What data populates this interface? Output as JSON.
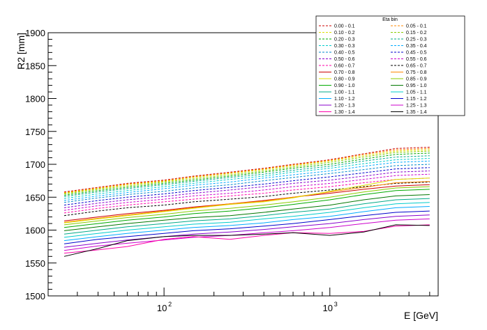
{
  "chart_data": {
    "type": "line",
    "title": "",
    "xlabel": "E [GeV]",
    "ylabel": "R2 [mm]",
    "x_scale": "log",
    "xlim": [
      20,
      4500
    ],
    "ylim": [
      1500,
      1900
    ],
    "y_ticks": [
      "1500",
      "1550",
      "1600",
      "1650",
      "1700",
      "1750",
      "1800",
      "1850",
      "1900"
    ],
    "x_tick_labels": [
      {
        "base": "10",
        "exp": "2",
        "value": 100
      },
      {
        "base": "10",
        "exp": "3",
        "value": 1000
      }
    ],
    "grid": false,
    "legend": {
      "title": "Eta bin",
      "placement": "top-right",
      "columns": 2
    },
    "x": [
      25,
      40,
      60,
      100,
      150,
      250,
      400,
      600,
      1000,
      1600,
      2500,
      4000
    ],
    "series": [
      {
        "name": "0.00 - 0.1",
        "color": "#cc0000",
        "dash": "dashed",
        "values": [
          1658,
          1665,
          1671,
          1676,
          1682,
          1688,
          1694,
          1700,
          1707,
          1716,
          1724,
          1726
        ]
      },
      {
        "name": "0.05 - 0.1",
        "color": "#ff8800",
        "dash": "dashed",
        "values": [
          1657,
          1664,
          1670,
          1675,
          1681,
          1687,
          1693,
          1699,
          1706,
          1715,
          1722,
          1724
        ]
      },
      {
        "name": "0.10 - 0.2",
        "color": "#dddd00",
        "dash": "dashed",
        "values": [
          1656,
          1663,
          1669,
          1674,
          1680,
          1686,
          1692,
          1698,
          1705,
          1713,
          1720,
          1722
        ]
      },
      {
        "name": "0.15 - 0.2",
        "color": "#88cc00",
        "dash": "dashed",
        "values": [
          1655,
          1662,
          1667,
          1673,
          1678,
          1684,
          1690,
          1696,
          1703,
          1711,
          1718,
          1720
        ]
      },
      {
        "name": "0.20 - 0.3",
        "color": "#00aa00",
        "dash": "dashed",
        "values": [
          1653,
          1660,
          1665,
          1671,
          1676,
          1682,
          1688,
          1694,
          1700,
          1708,
          1715,
          1717
        ]
      },
      {
        "name": "0.25 - 0.3",
        "color": "#00aa88",
        "dash": "dashed",
        "values": [
          1651,
          1658,
          1663,
          1669,
          1674,
          1680,
          1685,
          1691,
          1697,
          1705,
          1711,
          1713
        ]
      },
      {
        "name": "0.30 - 0.3",
        "color": "#00cccc",
        "dash": "dashed",
        "values": [
          1648,
          1655,
          1660,
          1666,
          1671,
          1677,
          1682,
          1688,
          1694,
          1701,
          1707,
          1709
        ]
      },
      {
        "name": "0.35 - 0.4",
        "color": "#00aaff",
        "dash": "dashed",
        "values": [
          1645,
          1652,
          1657,
          1663,
          1668,
          1673,
          1679,
          1684,
          1690,
          1697,
          1703,
          1705
        ]
      },
      {
        "name": "0.40 - 0.5",
        "color": "#0088cc",
        "dash": "dashed",
        "values": [
          1642,
          1649,
          1654,
          1659,
          1664,
          1669,
          1675,
          1680,
          1686,
          1692,
          1698,
          1700
        ]
      },
      {
        "name": "0.45 - 0.5",
        "color": "#0000cc",
        "dash": "dashed",
        "values": [
          1638,
          1645,
          1650,
          1655,
          1660,
          1665,
          1670,
          1675,
          1681,
          1687,
          1693,
          1695
        ]
      },
      {
        "name": "0.50 - 0.6",
        "color": "#8800cc",
        "dash": "dashed",
        "values": [
          1634,
          1641,
          1646,
          1651,
          1656,
          1661,
          1666,
          1671,
          1676,
          1682,
          1688,
          1690
        ]
      },
      {
        "name": "0.55 - 0.6",
        "color": "#cc00cc",
        "dash": "dashed",
        "values": [
          1630,
          1637,
          1642,
          1647,
          1652,
          1656,
          1661,
          1666,
          1671,
          1677,
          1683,
          1685
        ]
      },
      {
        "name": "0.60 - 0.7",
        "color": "#ff00aa",
        "dash": "dashed",
        "values": [
          1626,
          1633,
          1638,
          1643,
          1647,
          1652,
          1656,
          1661,
          1666,
          1672,
          1677,
          1679
        ]
      },
      {
        "name": "0.65 - 0.7",
        "color": "#000000",
        "dash": "dashed",
        "values": [
          1622,
          1629,
          1634,
          1638,
          1643,
          1647,
          1651,
          1656,
          1661,
          1666,
          1671,
          1673
        ]
      },
      {
        "name": "0.70 - 0.8",
        "color": "#cc0000",
        "dash": "solid",
        "values": [
          1614,
          1620,
          1625,
          1630,
          1635,
          1640,
          1645,
          1650,
          1656,
          1662,
          1667,
          1669
        ]
      },
      {
        "name": "0.75 - 0.8",
        "color": "#ff8800",
        "dash": "solid",
        "values": [
          1612,
          1618,
          1623,
          1629,
          1634,
          1640,
          1644,
          1650,
          1658,
          1665,
          1672,
          1674
        ]
      },
      {
        "name": "0.80 - 0.9",
        "color": "#dddd00",
        "dash": "solid",
        "values": [
          1611,
          1617,
          1622,
          1628,
          1633,
          1639,
          1643,
          1649,
          1659,
          1668,
          1677,
          1679
        ]
      },
      {
        "name": "0.85 - 0.9",
        "color": "#88cc00",
        "dash": "solid",
        "values": [
          1608,
          1614,
          1619,
          1624,
          1629,
          1633,
          1638,
          1643,
          1650,
          1658,
          1664,
          1666
        ]
      },
      {
        "name": "0.90 - 1.0",
        "color": "#00aa00",
        "dash": "solid",
        "values": [
          1604,
          1610,
          1615,
          1620,
          1625,
          1629,
          1634,
          1639,
          1646,
          1654,
          1660,
          1662
        ]
      },
      {
        "name": "0.95 - 1.0",
        "color": "#007700",
        "dash": "solid",
        "values": [
          1599,
          1605,
          1610,
          1615,
          1619,
          1622,
          1627,
          1632,
          1638,
          1646,
          1652,
          1654
        ]
      },
      {
        "name": "1.00 - 1.1",
        "color": "#00aa88",
        "dash": "solid",
        "values": [
          1594,
          1600,
          1605,
          1610,
          1614,
          1617,
          1622,
          1627,
          1632,
          1640,
          1646,
          1648
        ]
      },
      {
        "name": "1.05 - 1.1",
        "color": "#00cccc",
        "dash": "solid",
        "values": [
          1589,
          1595,
          1600,
          1605,
          1609,
          1612,
          1617,
          1621,
          1627,
          1634,
          1640,
          1642
        ]
      },
      {
        "name": "1.10 - 1.2",
        "color": "#00aaff",
        "dash": "solid",
        "values": [
          1584,
          1590,
          1595,
          1600,
          1604,
          1607,
          1611,
          1616,
          1621,
          1628,
          1634,
          1636
        ]
      },
      {
        "name": "1.15 - 1.2",
        "color": "#0000cc",
        "dash": "solid",
        "values": [
          1579,
          1586,
          1590,
          1595,
          1599,
          1602,
          1606,
          1610,
          1616,
          1622,
          1627,
          1629
        ]
      },
      {
        "name": "1.20 - 1.3",
        "color": "#8800cc",
        "dash": "solid",
        "values": [
          1574,
          1580,
          1585,
          1590,
          1594,
          1597,
          1601,
          1605,
          1610,
          1616,
          1621,
          1623
        ]
      },
      {
        "name": "1.25 - 1.3",
        "color": "#cc00cc",
        "dash": "solid",
        "values": [
          1569,
          1576,
          1580,
          1585,
          1589,
          1592,
          1596,
          1599,
          1604,
          1610,
          1615,
          1617
        ]
      },
      {
        "name": "1.30 - 1.4",
        "color": "#ff00aa",
        "dash": "solid",
        "values": [
          1565,
          1570,
          1575,
          1586,
          1590,
          1586,
          1592,
          1596,
          1595,
          1598,
          1606,
          1608
        ]
      },
      {
        "name": "1.35 - 1.4",
        "color": "#000000",
        "dash": "solid",
        "values": [
          1560,
          1572,
          1584,
          1590,
          1592,
          1592,
          1594,
          1596,
          1592,
          1597,
          1608,
          1607
        ]
      }
    ]
  }
}
